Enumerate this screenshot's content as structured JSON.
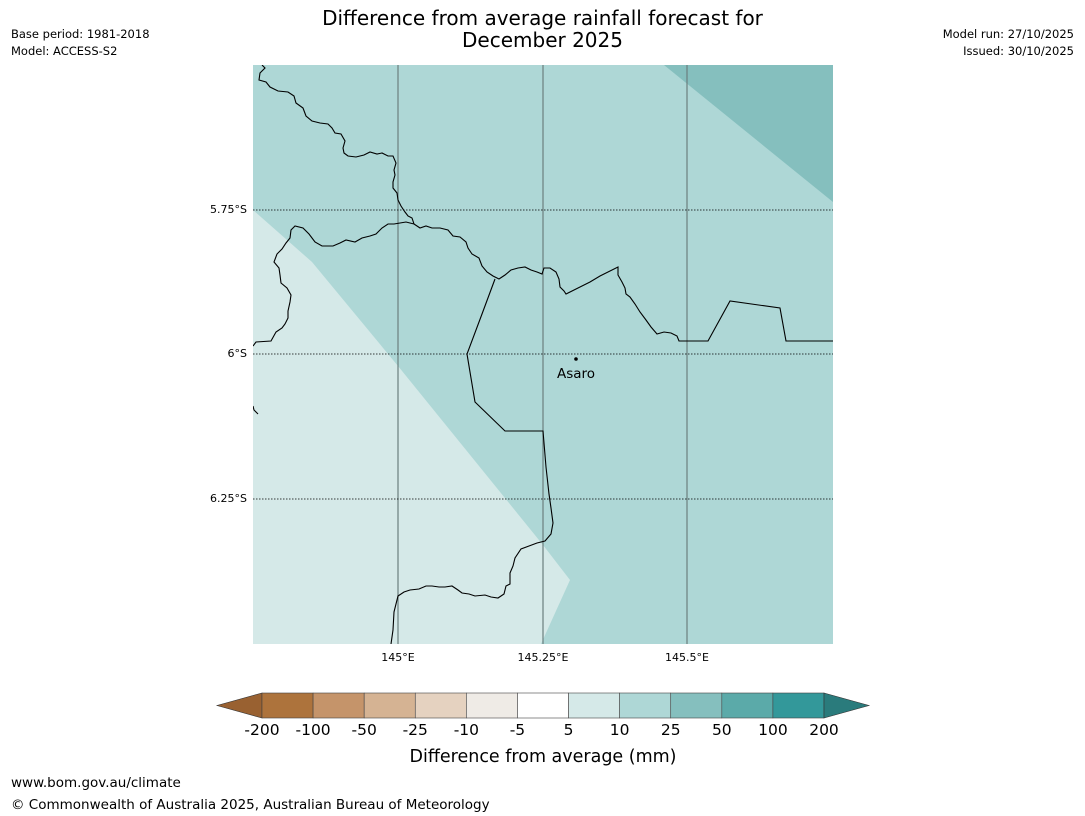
{
  "title": {
    "line1": "Difference from average rainfall forecast for",
    "line2": "December 2025"
  },
  "meta_left": {
    "base_period": "Base period: 1981-2018",
    "model": "Model: ACCESS-S2"
  },
  "meta_right": {
    "model_run": "Model run: 27/10/2025",
    "issued": "Issued: 30/10/2025"
  },
  "map": {
    "lat_labels": [
      "5.75°S",
      "6°S",
      "6.25°S"
    ],
    "lon_labels": [
      "145°E",
      "145.25°E",
      "145.5°E"
    ],
    "place": "Asaro",
    "category_colors": {
      "5-10": "#d5e9e8",
      "10-25": "#aed7d6",
      "25-50": "#85bfbe"
    }
  },
  "colorbar": {
    "title": "Difference from average (mm)",
    "labels": [
      "-200",
      "-100",
      "-50",
      "-25",
      "-10",
      "-5",
      "5",
      "10",
      "25",
      "50",
      "100",
      "200"
    ],
    "colors": [
      "#ad733c",
      "#c5946a",
      "#d5b393",
      "#e5d2c0",
      "#efebe6",
      "#ffffff",
      "#d5e9e8",
      "#aed7d6",
      "#85bfbe",
      "#5baaa9",
      "#33989a"
    ],
    "under_color": "#996131",
    "over_color": "#2a7b7c"
  },
  "footer": {
    "url": "www.bom.gov.au/climate",
    "copyright": "© Commonwealth of Australia 2025, Australian Bureau of Meteorology"
  }
}
